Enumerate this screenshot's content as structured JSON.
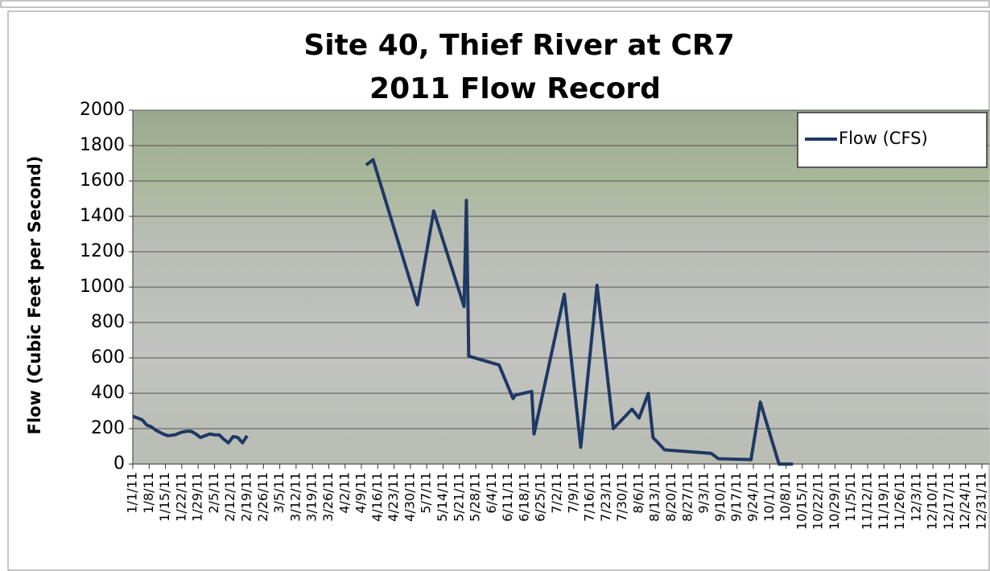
{
  "chart_data": {
    "type": "line",
    "title": "Site 40, Thief River at CR7",
    "subtitle": "2011 Flow Record",
    "y_label": "Flow (Cubic Feet per Second)",
    "legend_position": "top-right",
    "grid": true,
    "ylim": [
      0,
      2000
    ],
    "yticks": [
      0,
      200,
      400,
      600,
      800,
      1000,
      1200,
      1400,
      1600,
      1800,
      2000
    ],
    "xlim": [
      "1/1/11",
      "12/31/11"
    ],
    "xticks": [
      "1/1/11",
      "1/8/11",
      "1/15/11",
      "1/22/11",
      "1/29/11",
      "2/5/11",
      "2/12/11",
      "2/19/11",
      "2/26/11",
      "3/5/11",
      "3/12/11",
      "3/19/11",
      "3/26/11",
      "4/2/11",
      "4/9/11",
      "4/16/11",
      "4/23/11",
      "4/30/11",
      "5/7/11",
      "5/14/11",
      "5/21/11",
      "5/28/11",
      "6/4/11",
      "6/11/11",
      "6/18/11",
      "6/25/11",
      "7/2/11",
      "7/9/11",
      "7/16/11",
      "7/23/11",
      "7/30/11",
      "8/6/11",
      "8/13/11",
      "8/20/11",
      "8/27/11",
      "9/3/11",
      "9/10/11",
      "9/17/11",
      "9/24/11",
      "10/1/11",
      "10/8/11",
      "10/15/11",
      "10/22/11",
      "10/29/11",
      "11/5/11",
      "11/12/11",
      "11/19/11",
      "11/26/11",
      "12/3/11",
      "12/10/11",
      "12/17/11",
      "12/24/11",
      "12/31/11"
    ],
    "x": [
      "1/1/11",
      "1/3/11",
      "1/5/11",
      "1/7/11",
      "1/9/11",
      "1/11/11",
      "1/14/11",
      "1/16/11",
      "1/19/11",
      "1/22/11",
      "1/24/11",
      "1/26/11",
      "1/28/11",
      "1/30/11",
      "2/1/11",
      "2/3/11",
      "2/5/11",
      "2/7/11",
      "2/9/11",
      "2/11/11",
      "2/13/11",
      "2/15/11",
      "2/17/11",
      "2/19/11",
      "3/15/11",
      "4/11/11",
      "4/14/11",
      "5/3/11",
      "5/10/11",
      "5/23/11",
      "5/24/11",
      "5/25/11",
      "6/7/11",
      "6/13/11",
      "6/14/11",
      "6/21/11",
      "6/22/11",
      "7/5/11",
      "7/12/11",
      "7/19/11",
      "7/26/11",
      "8/3/11",
      "8/6/11",
      "8/10/11",
      "8/12/11",
      "8/17/11",
      "9/6/11",
      "9/9/11",
      "9/23/11",
      "9/27/11",
      "10/5/11",
      "10/11/11"
    ],
    "series": [
      {
        "name": "Flow (CFS)",
        "color": "#1f3864",
        "values": [
          270,
          260,
          250,
          220,
          210,
          190,
          170,
          160,
          165,
          180,
          185,
          185,
          170,
          150,
          160,
          170,
          165,
          165,
          140,
          120,
          155,
          150,
          120,
          160,
          null,
          1690,
          1720,
          900,
          1430,
          890,
          1490,
          610,
          560,
          370,
          390,
          410,
          170,
          960,
          95,
          1010,
          200,
          310,
          260,
          400,
          150,
          80,
          60,
          30,
          25,
          350,
          0,
          0
        ]
      }
    ]
  }
}
